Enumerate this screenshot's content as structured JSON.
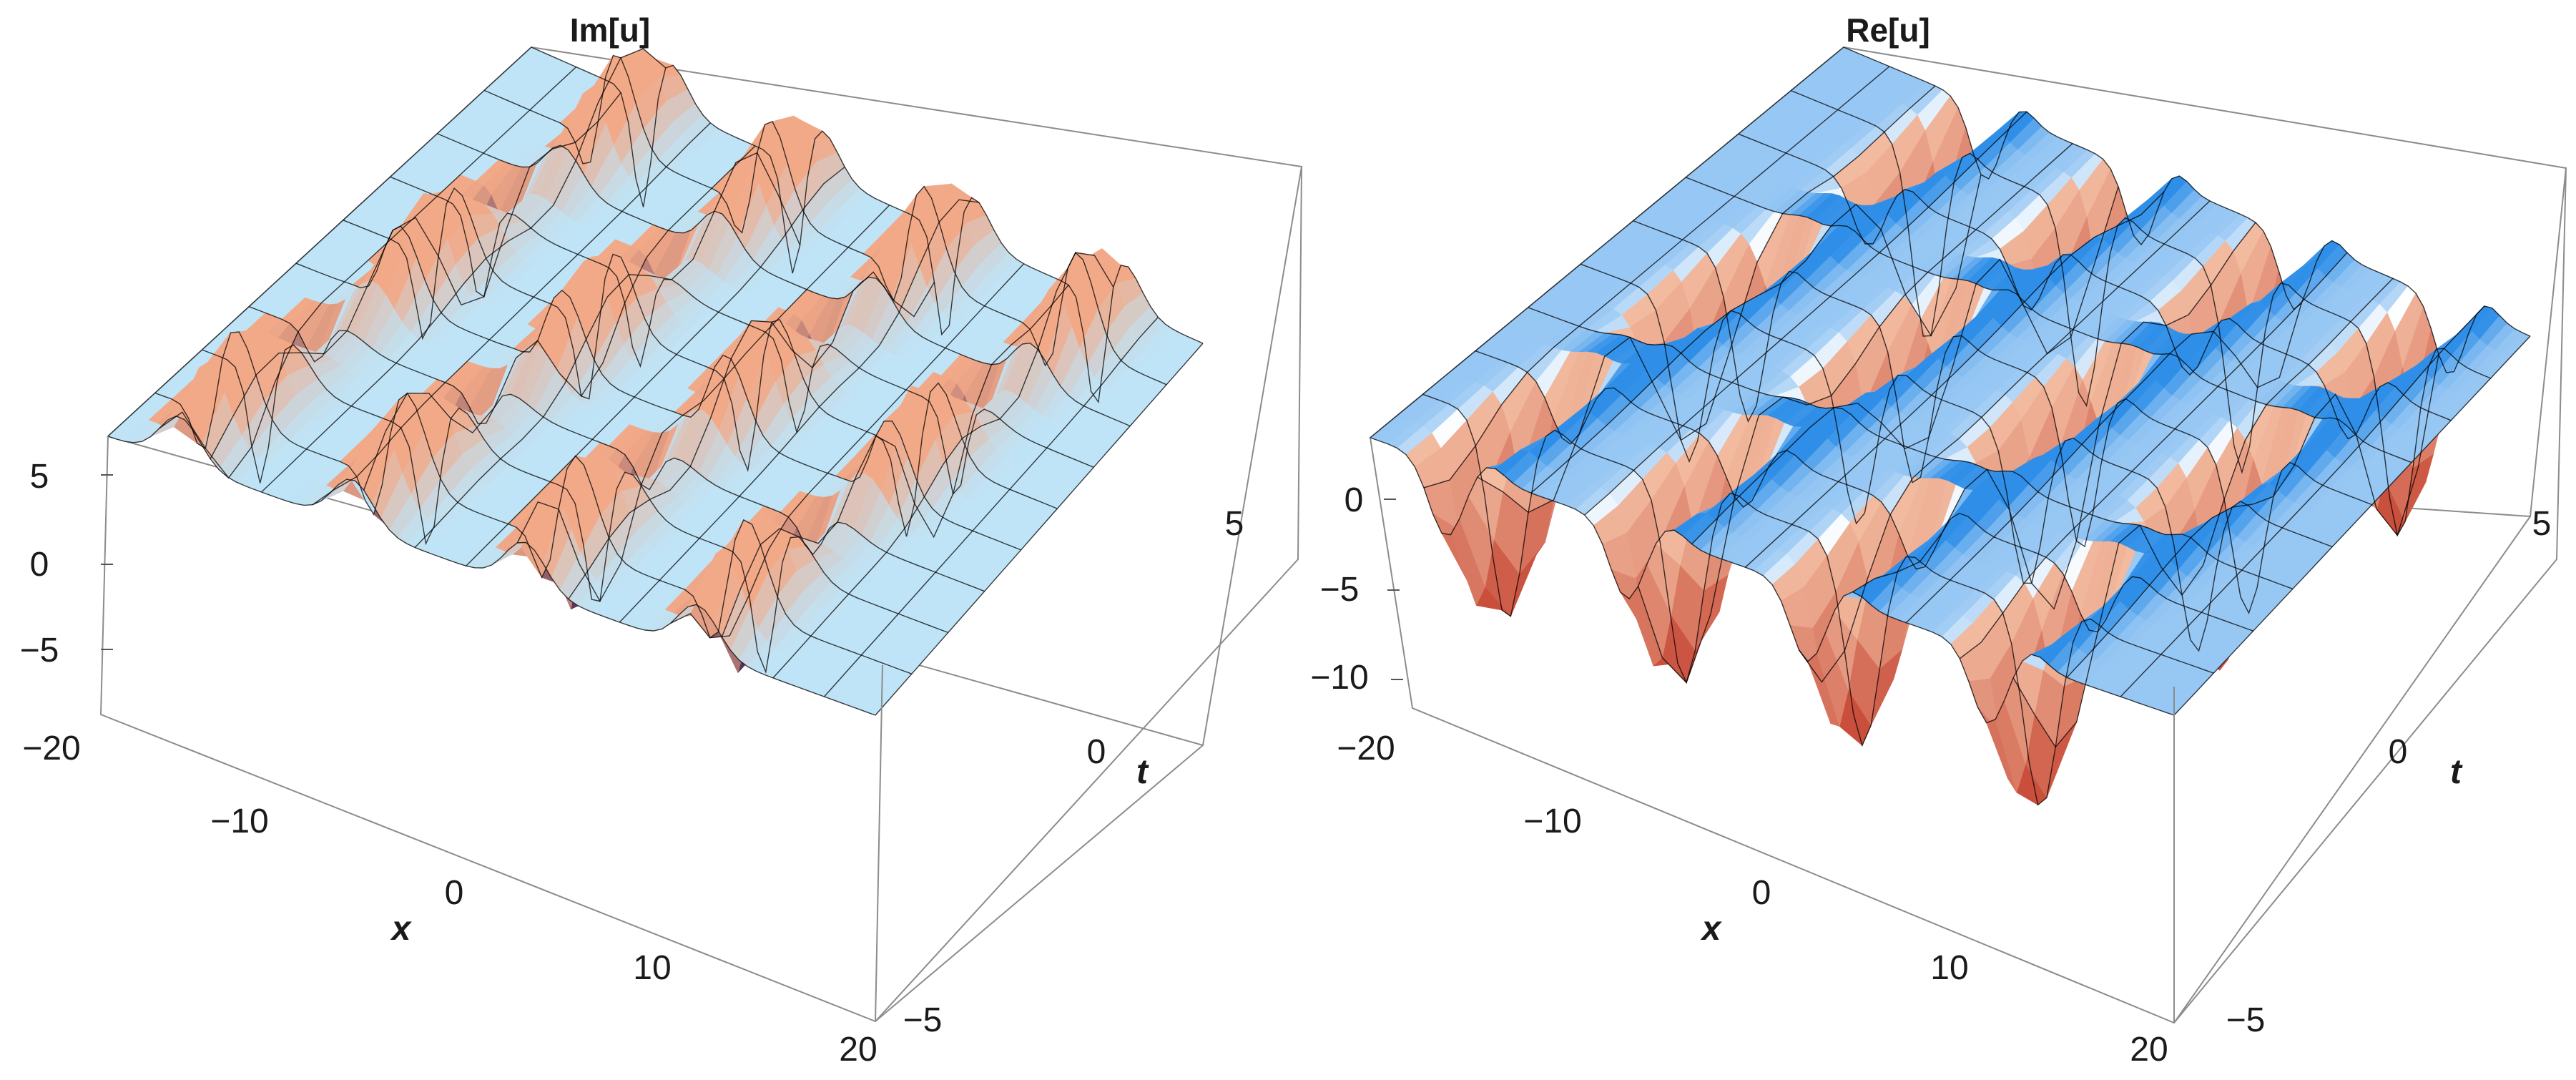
{
  "chart_data": [
    {
      "type": "surface3d",
      "title": "Im[u]",
      "xlabel": "x",
      "ylabel": "t",
      "zlabel": "",
      "x_range": [
        -20,
        20
      ],
      "t_range": [
        -5,
        5
      ],
      "z_range": [
        -8,
        6
      ],
      "x_ticks": [
        -20,
        -10,
        0,
        10,
        20
      ],
      "t_ticks": [
        -5,
        0,
        5
      ],
      "z_ticks": [
        5,
        0,
        -5
      ],
      "x_tick_labels": [
        "−20",
        "−10",
        "0",
        "10",
        "20"
      ],
      "t_tick_labels": [
        "−5",
        "0",
        "5"
      ],
      "z_tick_labels": [
        "5",
        "0",
        "−5"
      ],
      "description_values": {
        "baseline": 0,
        "peak_max": 6,
        "trough_min": -8,
        "periodic_crests": [
          -14,
          -5,
          4,
          13
        ]
      },
      "colors": {
        "low": "#4a2a55",
        "mid": "#f2a988",
        "base": "#bfe4f7",
        "grid": "#000000"
      }
    },
    {
      "type": "surface3d",
      "title": "Re[u]",
      "xlabel": "x",
      "ylabel": "t",
      "zlabel": "",
      "x_range": [
        -20,
        20
      ],
      "t_range": [
        -5,
        5
      ],
      "z_range": [
        -12,
        3
      ],
      "x_ticks": [
        -20,
        -10,
        0,
        10,
        20
      ],
      "t_ticks": [
        -5,
        0,
        5
      ],
      "z_ticks": [
        0,
        -5,
        -10
      ],
      "x_tick_labels": [
        "−20",
        "−10",
        "0",
        "10",
        "20"
      ],
      "t_tick_labels": [
        "−5",
        "0",
        "5"
      ],
      "z_tick_labels": [
        "0",
        "−5",
        "−10"
      ],
      "description_values": {
        "baseline": 1,
        "trough_min": -12,
        "periodic_troughs": [
          -14,
          -5,
          4,
          13
        ]
      },
      "colors": {
        "low": "#c94f3c",
        "mid": "#f5c2a6",
        "base": "#2f8fe8",
        "grid": "#000000"
      }
    }
  ]
}
